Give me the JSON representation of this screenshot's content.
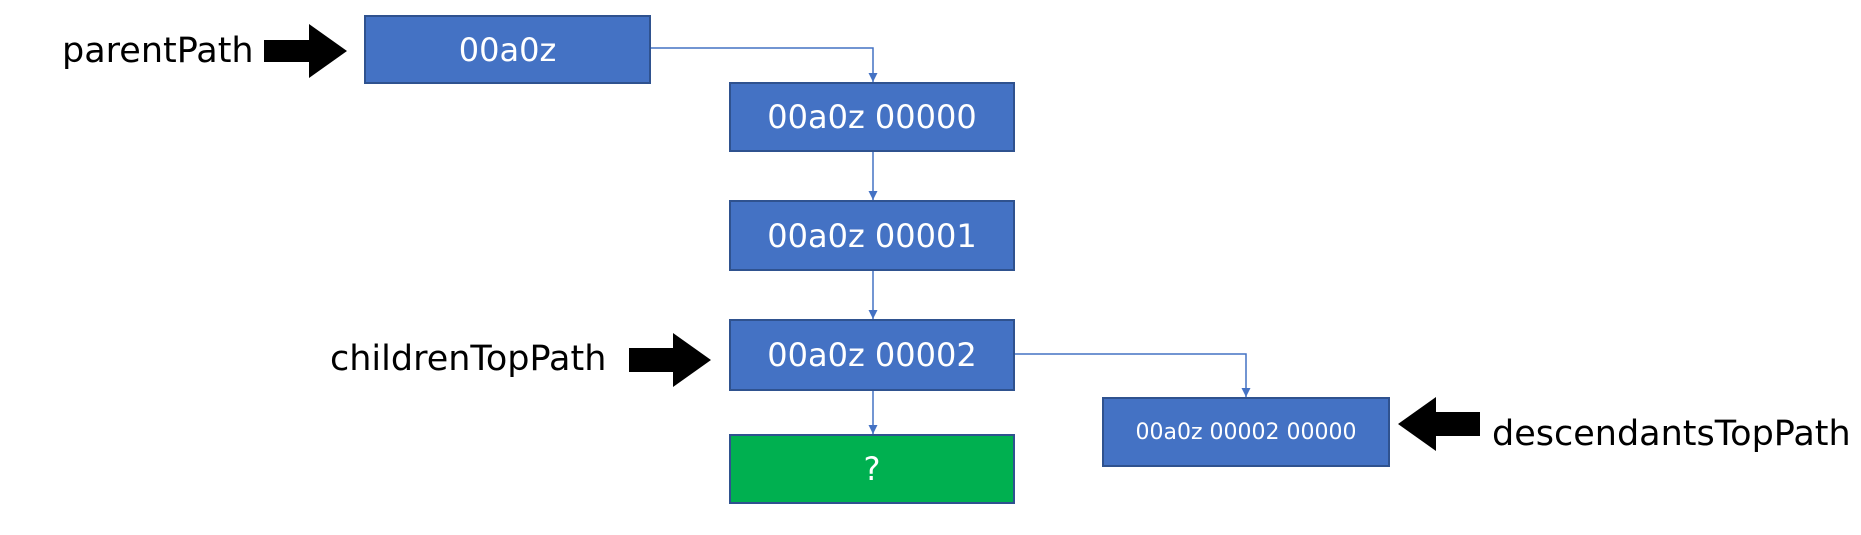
{
  "nodes": {
    "parent": "00a0z",
    "child_0": "00a0z 00000",
    "child_1": "00a0z 00001",
    "child_2": "00a0z 00002",
    "next_child": "?",
    "descendant": "00a0z 00002 00000"
  },
  "labels": {
    "parent_path": "parentPath",
    "children_top_path": "childrenTopPath",
    "descendants_top_path": "descendantsTopPath"
  },
  "colors": {
    "node_fill": "#4472c4",
    "node_border": "#2f528f",
    "unknown_fill": "#00b050",
    "connector": "#4472c4",
    "pointer_arrow": "#000000"
  }
}
